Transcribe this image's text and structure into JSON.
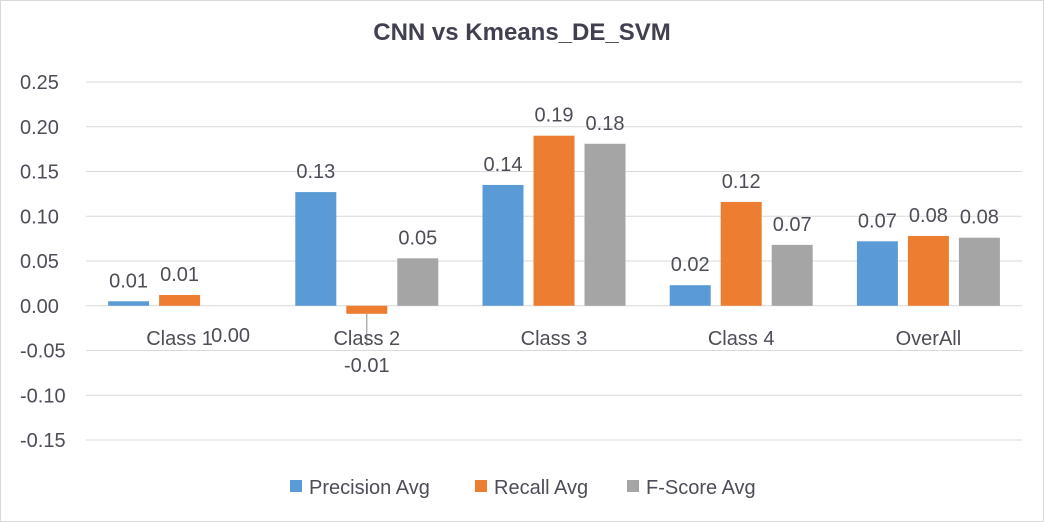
{
  "chart_data": {
    "type": "bar",
    "title": "CNN vs Kmeans_DE_SVM",
    "categories": [
      "Class 1",
      "Class 2",
      "Class 3",
      "Class 4",
      "OverAll"
    ],
    "series": [
      {
        "name": "Precision Avg",
        "values": [
          0.005,
          0.127,
          0.135,
          0.023,
          0.072
        ],
        "labels": [
          "0.01",
          "0.13",
          "0.14",
          "0.02",
          "0.07"
        ]
      },
      {
        "name": "Recall Avg",
        "values": [
          0.012,
          -0.009,
          0.19,
          0.116,
          0.078
        ],
        "labels": [
          "0.01",
          "-0.01",
          "0.19",
          "0.12",
          "0.08"
        ]
      },
      {
        "name": "F-Score Avg",
        "values": [
          0.0,
          0.053,
          0.181,
          0.068,
          0.076
        ],
        "labels": [
          "0.00",
          "0.05",
          "0.18",
          "0.07",
          "0.08"
        ]
      }
    ],
    "y_ticks": [
      "0.25",
      "0.20",
      "0.15",
      "0.10",
      "0.05",
      "0.00",
      "-0.05",
      "-0.10",
      "-0.15"
    ],
    "ylim": [
      -0.15,
      0.25
    ],
    "grid": true,
    "legend_position": "bottom",
    "colors": {
      "Precision Avg": "#5b9bd5",
      "Recall Avg": "#ed7d31",
      "F-Score Avg": "#a5a5a5",
      "grid": "#d9d9d9",
      "text": "#4d4d58"
    }
  }
}
